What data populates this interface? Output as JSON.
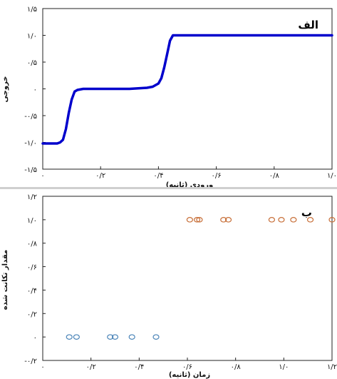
{
  "chart_data": [
    {
      "type": "line",
      "tag": "الف",
      "xlabel": "ورودی (ثانیه)",
      "ylabel": "خروجی",
      "xlim": [
        0,
        1.0
      ],
      "ylim": [
        -1.5,
        1.5
      ],
      "xticks": [
        0,
        0.2,
        0.4,
        0.6,
        0.8,
        1.0
      ],
      "xtick_labels": [
        "۰",
        "۰/۲",
        "۰/۴",
        "۰/۶",
        "۰/۸",
        "۱/۰"
      ],
      "yticks": [
        1.5,
        1.0,
        0.5,
        0,
        -0.5,
        -1.0,
        -1.5
      ],
      "ytick_labels": [
        "۱/۵",
        "۱/۰",
        "۰/۵",
        "۰",
        "-۰/۵",
        "-۱/۰",
        "-۱/۵"
      ],
      "color": "#0000cc",
      "series": [
        {
          "x": [
            0,
            0.05,
            0.06,
            0.07,
            0.08,
            0.09,
            0.1,
            0.11,
            0.12,
            0.14,
            0.2,
            0.3,
            0.36,
            0.38,
            0.4,
            0.41,
            0.42,
            0.43,
            0.44,
            0.45,
            0.47,
            0.5,
            0.7,
            0.9,
            1.0
          ],
          "y": [
            -1.02,
            -1.02,
            -1.0,
            -0.95,
            -0.75,
            -0.45,
            -0.2,
            -0.05,
            -0.02,
            0,
            0,
            0,
            0.02,
            0.04,
            0.1,
            0.2,
            0.4,
            0.65,
            0.9,
            1.0,
            1.0,
            1.0,
            1.0,
            1.0,
            1.0
          ]
        }
      ]
    },
    {
      "type": "scatter",
      "tag": "ب",
      "xlabel": "زمان (ثانیه)",
      "ylabel": "مقدار تکانت شده",
      "xlim": [
        0,
        1.2
      ],
      "ylim": [
        -0.2,
        1.2
      ],
      "xticks": [
        0,
        0.2,
        0.4,
        0.6,
        0.8,
        1.0,
        1.2
      ],
      "xtick_labels": [
        "۰",
        "۰/۲",
        "۰/۴",
        "۰/۶",
        "۰/۸",
        "۱/۰",
        "۱/۲"
      ],
      "yticks": [
        1.2,
        1.0,
        0.8,
        0.6,
        0.4,
        0.2,
        0,
        -0.2
      ],
      "ytick_labels": [
        "۱/۲",
        "۱/۰",
        "۰/۸",
        "۰/۶",
        "۰/۴",
        "۰/۲",
        "۰",
        "-۰/۲"
      ],
      "series": [
        {
          "color": "#4a84b8",
          "x": [
            0.11,
            0.14,
            0.28,
            0.3,
            0.37,
            0.47
          ],
          "y": [
            0,
            0,
            0,
            0,
            0,
            0
          ]
        },
        {
          "color": "#c8703a",
          "x": [
            0.61,
            0.64,
            0.65,
            0.75,
            0.77,
            0.95,
            0.99,
            1.04,
            1.11,
            1.2
          ],
          "y": [
            1,
            1,
            1,
            1,
            1,
            1,
            1,
            1,
            1,
            1
          ]
        }
      ]
    }
  ]
}
